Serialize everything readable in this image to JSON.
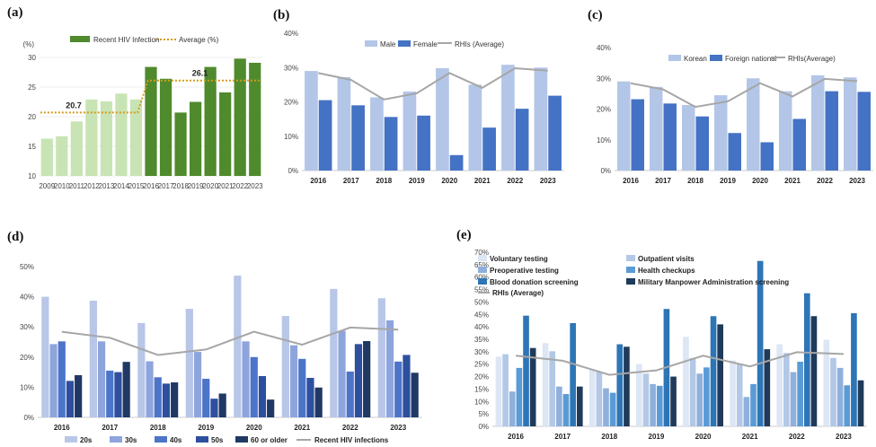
{
  "colors": {
    "light_green": "#c8e4b4",
    "dark_green": "#4f8a2d",
    "avg_orange": "#d69a1a",
    "light_blue": "#b3c6e7",
    "mid_blue": "#4472c4",
    "gray_line": "#a6a6a6",
    "d_20s": "#b8c6e8",
    "d_30s": "#8ea4dc",
    "d_40s": "#4c74c8",
    "d_50s": "#2d4f9e",
    "d_60": "#1f3864",
    "e1": "#dce6f4",
    "e2": "#b3c8e6",
    "e3": "#8fb0dc",
    "e4": "#5b9bd5",
    "e5": "#2e75b6",
    "e6": "#1f3a5a"
  },
  "chart_data": [
    {
      "panel": "(a)",
      "type": "bar",
      "ylabel": "(%)",
      "ylim": [
        10,
        30
      ],
      "yticks": [
        "10",
        "15",
        "20",
        "25",
        "30"
      ],
      "categories": [
        "2009",
        "2010",
        "2011",
        "2012",
        "2013",
        "2014",
        "2015",
        "2016",
        "2017",
        "2018",
        "2019",
        "2020",
        "2021",
        "2022",
        "2023"
      ],
      "series": [
        {
          "name": "Recent HIV Infection",
          "values": [
            16.3,
            16.7,
            19.2,
            22.9,
            22.6,
            23.9,
            22.9,
            28.4,
            26.4,
            20.7,
            22.5,
            28.4,
            24.1,
            29.8,
            29.1
          ]
        }
      ],
      "average": [
        {
          "name": "Average (%)",
          "period": "2009-2015",
          "value": 20.7,
          "label": "20.7"
        },
        {
          "name": "Average (%)",
          "period": "2016-2023",
          "value": 26.1,
          "label": "26.1"
        }
      ],
      "legend": [
        "Recent HIV Infection",
        "Average (%)"
      ],
      "legend_position": "top"
    },
    {
      "panel": "(b)",
      "type": "bar",
      "ylim": [
        0,
        40
      ],
      "yticks": [
        "0%",
        "10%",
        "20%",
        "30%",
        "40%"
      ],
      "categories": [
        "2016",
        "2017",
        "2018",
        "2019",
        "2020",
        "2021",
        "2022",
        "2023"
      ],
      "series": [
        {
          "name": "Male",
          "values": [
            29,
            27.2,
            21.3,
            23,
            29.8,
            25,
            30.8,
            30
          ]
        },
        {
          "name": "Female",
          "values": [
            20.5,
            19,
            15.6,
            16,
            4.5,
            12.5,
            18,
            21.8
          ]
        }
      ],
      "line": {
        "name": "RHIs (Average)",
        "values": [
          28.4,
          26.4,
          20.7,
          22.5,
          28.4,
          24.1,
          29.8,
          29.1
        ]
      },
      "legend": [
        "Male",
        "Female",
        "RHIs (Average)"
      ],
      "legend_position": "top"
    },
    {
      "panel": "(c)",
      "type": "bar",
      "ylim": [
        0,
        40
      ],
      "yticks": [
        "0%",
        "10%",
        "20%",
        "30%",
        "40%"
      ],
      "categories": [
        "2016",
        "2017",
        "2018",
        "2019",
        "2020",
        "2021",
        "2022",
        "2023"
      ],
      "series": [
        {
          "name": "Korean",
          "values": [
            29,
            27.2,
            21.3,
            24.5,
            30,
            25.8,
            31,
            30.3
          ]
        },
        {
          "name": "Foreign national",
          "values": [
            23.2,
            21.8,
            17.6,
            12.2,
            9.2,
            16.8,
            25.8,
            25.6
          ]
        }
      ],
      "line": {
        "name": "RHIs(Average)",
        "values": [
          28.4,
          26.4,
          20.7,
          22.5,
          28.4,
          24.1,
          29.8,
          29.1
        ]
      },
      "legend": [
        "Korean",
        "Foreign national",
        "RHIs(Average)"
      ],
      "legend_position": "top"
    },
    {
      "panel": "(d)",
      "type": "bar",
      "ylim": [
        0,
        50
      ],
      "yticks": [
        "0%",
        "10%",
        "20%",
        "30%",
        "40%",
        "50%"
      ],
      "categories": [
        "2016",
        "2017",
        "2018",
        "2019",
        "2020",
        "2021",
        "2022",
        "2023"
      ],
      "series": [
        {
          "name": "20s",
          "values": [
            40,
            38.7,
            31.3,
            36,
            47,
            33.6,
            42.6,
            39.5
          ]
        },
        {
          "name": "30s",
          "values": [
            24.3,
            25.2,
            18.6,
            21.7,
            25.2,
            23.9,
            28.7,
            32.2
          ]
        },
        {
          "name": "40s",
          "values": [
            25.2,
            15.5,
            13.3,
            12.8,
            20,
            19.4,
            15.2,
            18.5
          ]
        },
        {
          "name": "50s",
          "values": [
            12.1,
            15,
            11.2,
            6.2,
            13.7,
            13.1,
            24.3,
            20.7
          ]
        },
        {
          "name": "60 or older",
          "values": [
            14,
            18.4,
            11.6,
            7.9,
            5.9,
            9.9,
            25.3,
            14.8
          ]
        }
      ],
      "line": {
        "name": "Recent HIV infections",
        "values": [
          28.4,
          26.4,
          20.7,
          22.5,
          28.4,
          24.1,
          29.8,
          29.1
        ]
      },
      "legend": [
        "20s",
        "30s",
        "40s",
        "50s",
        "60 or older",
        "Recent HIV infections"
      ],
      "legend_position": "bottom"
    },
    {
      "panel": "(e)",
      "type": "bar",
      "ylim": [
        0,
        70
      ],
      "yticks": [
        "0%",
        "5%",
        "10%",
        "15%",
        "20%",
        "25%",
        "30%",
        "35%",
        "40%",
        "45%",
        "50%",
        "55%",
        "60%",
        "65%",
        "70%"
      ],
      "categories": [
        "2016",
        "2017",
        "2018",
        "2019",
        "2020",
        "2021",
        "2022",
        "2023"
      ],
      "series": [
        {
          "name": "Voluntary testing",
          "values": [
            28,
            33.5,
            23,
            25,
            36,
            26.5,
            33,
            34.8
          ]
        },
        {
          "name": "Outpatient visits",
          "values": [
            29,
            30.2,
            22,
            21.2,
            27.5,
            25.2,
            29.5,
            27.5
          ]
        },
        {
          "name": "Preoperative testing",
          "values": [
            14,
            16,
            15.3,
            17,
            21.2,
            11.8,
            21.8,
            23.5
          ]
        },
        {
          "name": "Health checkups",
          "values": [
            23.5,
            13,
            13.5,
            16.3,
            23.7,
            17,
            26,
            16.5
          ]
        },
        {
          "name": "Blood donation screening",
          "values": [
            44.5,
            41.5,
            33,
            47.2,
            44.3,
            66.5,
            53.5,
            45.5
          ]
        },
        {
          "name": "Military Manpower Administration screening",
          "values": [
            31.5,
            16,
            32,
            20,
            41,
            31,
            44.3,
            18.5
          ]
        }
      ],
      "line": {
        "name": "RHIs (Average)",
        "values": [
          28.4,
          26.4,
          20.7,
          22.5,
          28.4,
          24.1,
          29.8,
          29.1
        ]
      },
      "legend": [
        "Voluntary testing",
        "Outpatient visits",
        "Preoperative testing",
        "Health checkups",
        "Blood donation screening",
        "Military Manpower Administration screening",
        "RHIs (Average)"
      ],
      "legend_position": "top"
    }
  ]
}
